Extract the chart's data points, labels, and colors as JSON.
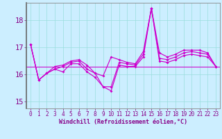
{
  "background_color": "#cceeff",
  "grid_color": "#99dddd",
  "line_color": "#cc00cc",
  "xlim": [
    -0.5,
    23.5
  ],
  "ylim": [
    14.75,
    18.65
  ],
  "yticks": [
    15,
    16,
    17,
    18
  ],
  "xticks": [
    0,
    1,
    2,
    3,
    4,
    5,
    6,
    7,
    8,
    9,
    10,
    11,
    12,
    13,
    14,
    15,
    16,
    17,
    18,
    19,
    20,
    21,
    22,
    23
  ],
  "series1": [
    17.1,
    15.8,
    16.05,
    16.3,
    16.35,
    16.5,
    16.55,
    16.35,
    16.05,
    15.95,
    16.65,
    16.55,
    16.45,
    16.4,
    16.85,
    18.45,
    16.8,
    16.65,
    16.75,
    16.9,
    16.9,
    16.9,
    16.8,
    16.3
  ],
  "series2": [
    17.1,
    15.8,
    16.05,
    16.2,
    16.3,
    16.45,
    16.5,
    16.2,
    16.05,
    15.55,
    15.55,
    16.45,
    16.4,
    16.35,
    16.75,
    18.45,
    16.6,
    16.55,
    16.65,
    16.8,
    16.85,
    16.8,
    16.75,
    16.3
  ],
  "series3": [
    17.1,
    15.8,
    16.05,
    16.2,
    16.1,
    16.4,
    16.4,
    16.1,
    15.9,
    15.55,
    15.4,
    16.35,
    16.3,
    16.3,
    16.65,
    18.45,
    16.5,
    16.45,
    16.55,
    16.7,
    16.75,
    16.7,
    16.65,
    16.3
  ],
  "hline_y": 16.3,
  "xlabel": "Windchill (Refroidissement éolien,°C)",
  "tick_color": "#880088",
  "xlabel_color": "#880088",
  "spine_color": "#888888",
  "left_spine_color": "#666666"
}
